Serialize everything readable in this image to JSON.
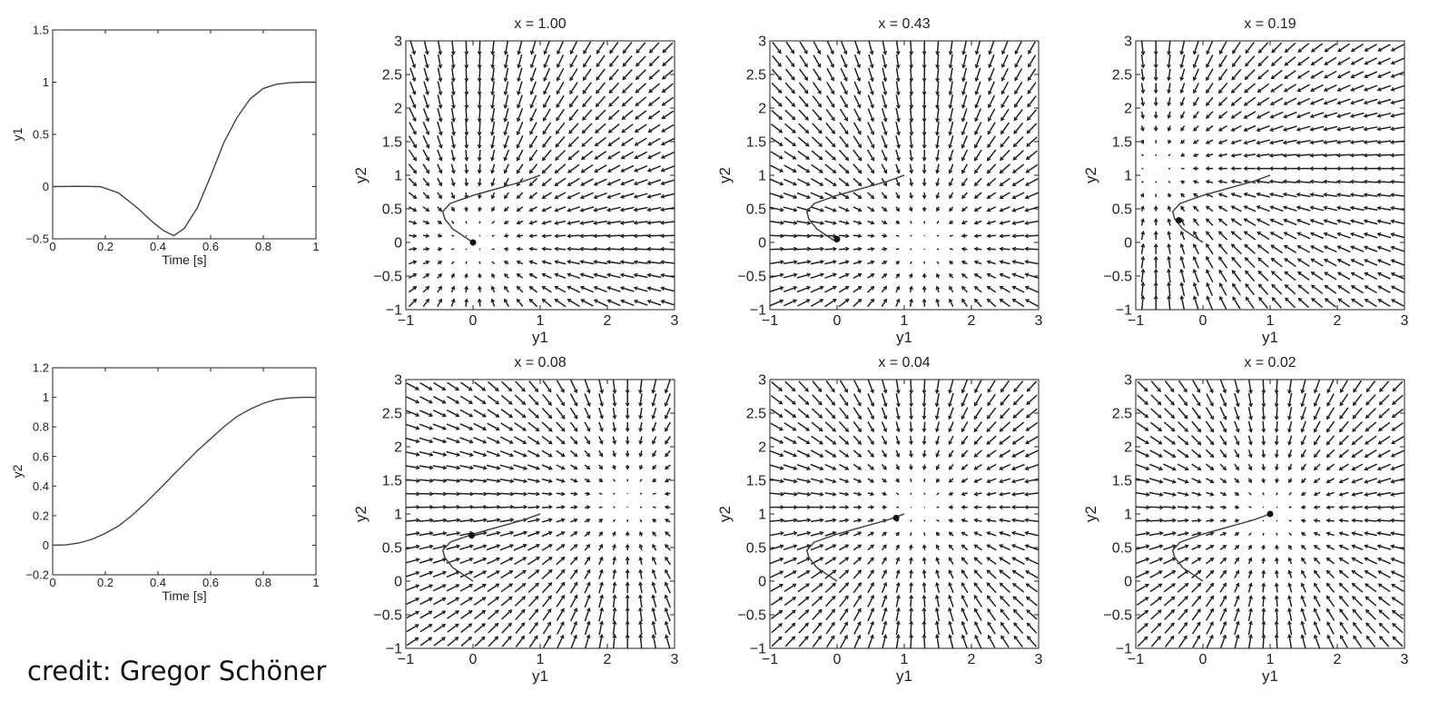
{
  "credit": "credit: Gregor Schöner",
  "colors": {
    "axis": "#222222",
    "curve": "#444444",
    "arrow": "#222222",
    "background": "#ffffff"
  },
  "chart_data": [
    {
      "type": "line",
      "id": "y1-vs-time",
      "title": "",
      "xlabel": "Time [s]",
      "ylabel": "y1",
      "xlim": [
        0,
        1
      ],
      "ylim": [
        -0.5,
        1.5
      ],
      "xticks": [
        0,
        0.2,
        0.4,
        0.6,
        0.8,
        1
      ],
      "xtick_labels": [
        "0",
        "0.2",
        "0.4",
        "0.6",
        "0.8",
        "1"
      ],
      "yticks": [
        -0.5,
        0,
        0.5,
        1,
        1.5
      ],
      "ytick_labels": [
        "−0.5",
        "0",
        "0.5",
        "1",
        "1.5"
      ],
      "series": [
        {
          "x": [
            0,
            0.1,
            0.18,
            0.25,
            0.32,
            0.38,
            0.42,
            0.46,
            0.5,
            0.55,
            0.6,
            0.65,
            0.7,
            0.75,
            0.8,
            0.85,
            0.9,
            0.95,
            1.0
          ],
          "y": [
            0,
            0.003,
            0.0,
            -0.06,
            -0.2,
            -0.34,
            -0.42,
            -0.47,
            -0.4,
            -0.2,
            0.1,
            0.42,
            0.66,
            0.84,
            0.94,
            0.98,
            0.995,
            1.0,
            1.0
          ]
        }
      ]
    },
    {
      "type": "line",
      "id": "y2-vs-time",
      "title": "",
      "xlabel": "Time [s]",
      "ylabel": "y2",
      "xlim": [
        0,
        1
      ],
      "ylim": [
        -0.2,
        1.2
      ],
      "xticks": [
        0,
        0.2,
        0.4,
        0.6,
        0.8,
        1
      ],
      "xtick_labels": [
        "0",
        "0.2",
        "0.4",
        "0.6",
        "0.8",
        "1"
      ],
      "yticks": [
        -0.2,
        0,
        0.2,
        0.4,
        0.6,
        0.8,
        1,
        1.2
      ],
      "ytick_labels": [
        "−0.2",
        "0",
        "0.2",
        "0.4",
        "0.6",
        "0.8",
        "1",
        "1.2"
      ],
      "series": [
        {
          "x": [
            0,
            0.05,
            0.1,
            0.15,
            0.2,
            0.25,
            0.3,
            0.35,
            0.4,
            0.45,
            0.5,
            0.55,
            0.6,
            0.65,
            0.7,
            0.75,
            0.8,
            0.85,
            0.9,
            0.95,
            1.0
          ],
          "y": [
            0,
            0.002,
            0.015,
            0.04,
            0.08,
            0.13,
            0.2,
            0.28,
            0.37,
            0.46,
            0.55,
            0.64,
            0.72,
            0.8,
            0.87,
            0.92,
            0.96,
            0.985,
            0.996,
            1.0,
            1.0
          ]
        }
      ]
    },
    {
      "type": "vector_field",
      "id": "field-x-1.00",
      "title": "x = 1.00",
      "xlabel": "y1",
      "ylabel": "y2",
      "xlim": [
        -1,
        3
      ],
      "ylim": [
        -1,
        3
      ],
      "xticks": [
        -1,
        0,
        1,
        2,
        3
      ],
      "xtick_labels": [
        "−1",
        "0",
        "1",
        "2",
        "3"
      ],
      "yticks": [
        -1,
        -0.5,
        0,
        0.5,
        1,
        1.5,
        2,
        2.5,
        3
      ],
      "ytick_labels": [
        "−1",
        "−0.5",
        "0",
        "0.5",
        "1",
        "1.5",
        "2",
        "2.5",
        "3"
      ],
      "attractor": [
        0,
        0
      ],
      "state": [
        0,
        0
      ],
      "trajectory_y1": [
        0,
        -0.12,
        -0.3,
        -0.42,
        -0.45,
        -0.34,
        0.0,
        0.25,
        0.5,
        0.75,
        1.0
      ],
      "trajectory_y2": [
        0,
        0.08,
        0.2,
        0.35,
        0.46,
        0.58,
        0.7,
        0.77,
        0.84,
        0.91,
        1.0
      ]
    },
    {
      "type": "vector_field",
      "id": "field-x-0.43",
      "title": "x = 0.43",
      "xlabel": "y1",
      "ylabel": "y2",
      "xlim": [
        -1,
        3
      ],
      "ylim": [
        -1,
        3
      ],
      "xticks": [
        -1,
        0,
        1,
        2,
        3
      ],
      "xtick_labels": [
        "−1",
        "0",
        "1",
        "2",
        "3"
      ],
      "yticks": [
        -1,
        -0.5,
        0,
        0.5,
        1,
        1.5,
        2,
        2.5,
        3
      ],
      "ytick_labels": [
        "−1",
        "−0.5",
        "0",
        "0.5",
        "1",
        "1.5",
        "2",
        "2.5",
        "3"
      ],
      "attractor": [
        1.28,
        0.0
      ],
      "state": [
        0.0,
        0.05
      ],
      "trajectory_y1": [
        0,
        -0.12,
        -0.3,
        -0.42,
        -0.45,
        -0.34,
        0.0,
        0.25,
        0.5,
        0.75,
        1.0
      ],
      "trajectory_y2": [
        0,
        0.08,
        0.2,
        0.35,
        0.46,
        0.58,
        0.7,
        0.77,
        0.84,
        0.91,
        1.0
      ]
    },
    {
      "type": "vector_field",
      "id": "field-x-0.19",
      "title": "x = 0.19",
      "xlabel": "y1",
      "ylabel": "y2",
      "xlim": [
        -1,
        3
      ],
      "ylim": [
        -1,
        3
      ],
      "xticks": [
        -1,
        0,
        1,
        2,
        3
      ],
      "xtick_labels": [
        "−1",
        "0",
        "1",
        "2",
        "3"
      ],
      "yticks": [
        -1,
        -0.5,
        0,
        0.5,
        1,
        1.5,
        2,
        2.5,
        3
      ],
      "ytick_labels": [
        "−1",
        "−0.5",
        "0",
        "0.5",
        "1",
        "1.5",
        "2",
        "2.5",
        "3"
      ],
      "attractor": [
        -0.7,
        1.1
      ],
      "state": [
        -0.36,
        0.33
      ],
      "trajectory_y1": [
        0,
        -0.12,
        -0.3,
        -0.42,
        -0.45,
        -0.34,
        0.0,
        0.25,
        0.5,
        0.75,
        1.0
      ],
      "trajectory_y2": [
        0,
        0.08,
        0.2,
        0.35,
        0.46,
        0.58,
        0.7,
        0.77,
        0.84,
        0.91,
        1.0
      ]
    },
    {
      "type": "vector_field",
      "id": "field-x-0.08",
      "title": "x = 0.08",
      "xlabel": "y1",
      "ylabel": "y2",
      "xlim": [
        -1,
        3
      ],
      "ylim": [
        -1,
        3
      ],
      "xticks": [
        -1,
        0,
        1,
        2,
        3
      ],
      "xtick_labels": [
        "−1",
        "0",
        "1",
        "2",
        "3"
      ],
      "yticks": [
        -1,
        -0.5,
        0,
        0.5,
        1,
        1.5,
        2,
        2.5,
        3
      ],
      "ytick_labels": [
        "−1",
        "−0.5",
        "0",
        "0.5",
        "1",
        "1.5",
        "2",
        "2.5",
        "3"
      ],
      "attractor": [
        2.3,
        1.2
      ],
      "state": [
        -0.02,
        0.68
      ],
      "trajectory_y1": [
        0,
        -0.12,
        -0.3,
        -0.42,
        -0.45,
        -0.34,
        0.0,
        0.25,
        0.5,
        0.75,
        1.0
      ],
      "trajectory_y2": [
        0,
        0.08,
        0.2,
        0.35,
        0.46,
        0.58,
        0.7,
        0.77,
        0.84,
        0.91,
        1.0
      ]
    },
    {
      "type": "vector_field",
      "id": "field-x-0.04",
      "title": "x = 0.04",
      "xlabel": "y1",
      "ylabel": "y2",
      "xlim": [
        -1,
        3
      ],
      "ylim": [
        -1,
        3
      ],
      "xticks": [
        -1,
        0,
        1,
        2,
        3
      ],
      "xtick_labels": [
        "−1",
        "0",
        "1",
        "2",
        "3"
      ],
      "yticks": [
        -1,
        -0.5,
        0,
        0.5,
        1,
        1.5,
        2,
        2.5,
        3
      ],
      "ytick_labels": [
        "−1",
        "−0.5",
        "0",
        "0.5",
        "1",
        "1.5",
        "2",
        "2.5",
        "3"
      ],
      "attractor": [
        1.2,
        1.1
      ],
      "state": [
        0.88,
        0.94
      ],
      "trajectory_y1": [
        0,
        -0.12,
        -0.3,
        -0.42,
        -0.45,
        -0.34,
        0.0,
        0.25,
        0.5,
        0.75,
        1.0
      ],
      "trajectory_y2": [
        0,
        0.08,
        0.2,
        0.35,
        0.46,
        0.58,
        0.7,
        0.77,
        0.84,
        0.91,
        1.0
      ]
    },
    {
      "type": "vector_field",
      "id": "field-x-0.02",
      "title": "x = 0.02",
      "xlabel": "y1",
      "ylabel": "y2",
      "xlim": [
        -1,
        3
      ],
      "ylim": [
        -1,
        3
      ],
      "xticks": [
        -1,
        0,
        1,
        2,
        3
      ],
      "xtick_labels": [
        "−1",
        "0",
        "1",
        "2",
        "3"
      ],
      "yticks": [
        -1,
        -0.5,
        0,
        0.5,
        1,
        1.5,
        2,
        2.5,
        3
      ],
      "ytick_labels": [
        "−1",
        "−0.5",
        "0",
        "0.5",
        "1",
        "1.5",
        "2",
        "2.5",
        "3"
      ],
      "attractor": [
        1.0,
        1.0
      ],
      "state": [
        1.0,
        1.0
      ],
      "trajectory_y1": [
        0,
        -0.12,
        -0.3,
        -0.42,
        -0.45,
        -0.34,
        0.0,
        0.25,
        0.5,
        0.75,
        1.0
      ],
      "trajectory_y2": [
        0,
        0.08,
        0.2,
        0.35,
        0.46,
        0.58,
        0.7,
        0.77,
        0.84,
        0.91,
        1.0
      ]
    }
  ]
}
